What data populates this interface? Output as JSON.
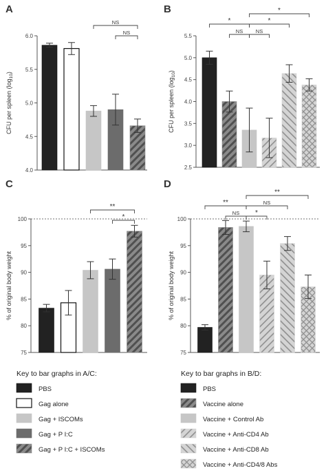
{
  "patterns": {
    "black": {
      "fill": "#222222",
      "stroke": "#111111",
      "hatch": null
    },
    "white": {
      "fill": "#ffffff",
      "stroke": "#111111",
      "hatch": null
    },
    "lightgray": {
      "fill": "#c6c6c6",
      "stroke": "#c6c6c6",
      "hatch": null
    },
    "darkgray": {
      "fill": "#6c6c6c",
      "stroke": "#6c6c6c",
      "hatch": null
    },
    "darkhatch": {
      "fill": "#8a8a8a",
      "stroke": "#8a8a8a",
      "hatch": "diag-dark"
    },
    "lighthatch": {
      "fill": "#d4d4d4",
      "stroke": "#d4d4d4",
      "hatch": "diag-light"
    },
    "backhatch": {
      "fill": "#d4d4d4",
      "stroke": "#d4d4d4",
      "hatch": "back-light"
    },
    "crosshatch": {
      "fill": "#d4d4d4",
      "stroke": "#d4d4d4",
      "hatch": "cross-light"
    }
  },
  "chart_data": [
    {
      "panel": "A",
      "type": "bar",
      "ylabel": "CFU per spleen (log10)",
      "ylabel_main": "CFU per spleen (log",
      "ylabel_sub": "10",
      "ylabel_close": ")",
      "ylim": [
        4.0,
        6.0
      ],
      "yticks": [
        "4.0",
        "4.5",
        "5.0",
        "5.5",
        "6.0"
      ],
      "ytick_values": [
        4.0,
        4.5,
        5.0,
        5.5,
        6.0
      ],
      "dashed_line": null,
      "bars": [
        {
          "group": "PBS",
          "pattern": "black",
          "value": 5.86,
          "err": 0.03
        },
        {
          "group": "Gag alone",
          "pattern": "white",
          "value": 5.81,
          "err": 0.09
        },
        {
          "group": "Gag + ISCOMs",
          "pattern": "lightgray",
          "value": 4.88,
          "err": 0.08
        },
        {
          "group": "Gag + P I:C",
          "pattern": "darkgray",
          "value": 4.9,
          "err": 0.23
        },
        {
          "group": "Gag + P I:C + ISCOMs",
          "pattern": "darkhatch",
          "value": 4.66,
          "err": 0.1
        }
      ],
      "brackets": [
        {
          "from": 2,
          "to": 4,
          "label": "NS",
          "tier": 1
        },
        {
          "from": 3,
          "to": 4,
          "label": "NS",
          "tier": 0
        }
      ]
    },
    {
      "panel": "B",
      "type": "bar",
      "ylabel": "CFU per spleen (log10)",
      "ylabel_main": "CFU per spleen (log",
      "ylabel_sub": "10",
      "ylabel_close": ")",
      "ylim": [
        2.5,
        5.5
      ],
      "yticks": [
        "2.5",
        "3.0",
        "3.5",
        "4.0",
        "4.5",
        "5.0",
        "5.5"
      ],
      "ytick_values": [
        2.5,
        3.0,
        3.5,
        4.0,
        4.5,
        5.0,
        5.5
      ],
      "dashed_line": null,
      "bars": [
        {
          "group": "PBS",
          "pattern": "black",
          "value": 5.0,
          "err": 0.15
        },
        {
          "group": "Vaccine alone",
          "pattern": "darkhatch",
          "value": 4.0,
          "err": 0.24
        },
        {
          "group": "Vaccine + Control Ab",
          "pattern": "lightgray",
          "value": 3.35,
          "err": 0.5
        },
        {
          "group": "Vaccine + Anti-CD4 Ab",
          "pattern": "lighthatch",
          "value": 3.17,
          "err": 0.45
        },
        {
          "group": "Vaccine + Anti-CD8 Ab",
          "pattern": "backhatch",
          "value": 4.64,
          "err": 0.2
        },
        {
          "group": "Vaccine + Anti-CD4/8 Abs",
          "pattern": "crosshatch",
          "value": 4.38,
          "err": 0.14
        }
      ],
      "brackets": [
        {
          "from": 0,
          "to": 2,
          "label": "*",
          "tier": 1
        },
        {
          "from": 2,
          "to": 5,
          "label": "*",
          "tier": 2
        },
        {
          "from": 1,
          "to": 2,
          "label": "NS",
          "tier": 0
        },
        {
          "from": 2,
          "to": 3,
          "label": "NS",
          "tier": 0
        },
        {
          "from": 2,
          "to": 4,
          "label": "*",
          "tier": 1
        }
      ]
    },
    {
      "panel": "C",
      "type": "bar",
      "ylabel": "% of original body weight",
      "ylim": [
        75,
        100
      ],
      "yticks": [
        "75",
        "80",
        "85",
        "90",
        "95",
        "100"
      ],
      "ytick_values": [
        75,
        80,
        85,
        90,
        95,
        100
      ],
      "dashed_line": 100,
      "bars": [
        {
          "group": "PBS",
          "pattern": "black",
          "value": 83.3,
          "err": 0.7
        },
        {
          "group": "Gag alone",
          "pattern": "white",
          "value": 84.3,
          "err": 2.3
        },
        {
          "group": "Gag + ISCOMs",
          "pattern": "lightgray",
          "value": 90.4,
          "err": 1.6
        },
        {
          "group": "Gag + P I:C",
          "pattern": "darkgray",
          "value": 90.6,
          "err": 1.9
        },
        {
          "group": "Gag + P I:C + ISCOMs",
          "pattern": "darkhatch",
          "value": 97.7,
          "err": 1.1
        }
      ],
      "brackets": [
        {
          "from": 2,
          "to": 4,
          "label": "**",
          "tier": 1
        },
        {
          "from": 3,
          "to": 4,
          "label": "*",
          "tier": 0
        }
      ]
    },
    {
      "panel": "D",
      "type": "bar",
      "ylabel": "% of original body weight",
      "ylim": [
        75,
        100
      ],
      "yticks": [
        "75",
        "80",
        "85",
        "90",
        "95",
        "100"
      ],
      "ytick_values": [
        75,
        80,
        85,
        90,
        95,
        100
      ],
      "dashed_line": 100,
      "bars": [
        {
          "group": "PBS",
          "pattern": "black",
          "value": 79.7,
          "err": 0.5
        },
        {
          "group": "Vaccine alone",
          "pattern": "darkhatch",
          "value": 98.4,
          "err": 1.3
        },
        {
          "group": "Vaccine + Control Ab",
          "pattern": "lightgray",
          "value": 98.6,
          "err": 1.0
        },
        {
          "group": "Vaccine + Anti-CD4 Ab",
          "pattern": "lighthatch",
          "value": 89.5,
          "err": 2.6
        },
        {
          "group": "Vaccine + Anti-CD8 Ab",
          "pattern": "backhatch",
          "value": 95.4,
          "err": 1.3
        },
        {
          "group": "Vaccine + Anti-CD4/8 Abs",
          "pattern": "crosshatch",
          "value": 87.3,
          "err": 2.2
        }
      ],
      "brackets": [
        {
          "from": 0,
          "to": 2,
          "label": "**",
          "tier": 1
        },
        {
          "from": 2,
          "to": 5,
          "label": "**",
          "tier": 2
        },
        {
          "from": 1,
          "to": 2,
          "label": "NS",
          "tier": 0
        },
        {
          "from": 2,
          "to": 3,
          "label": "*",
          "tier": 0
        },
        {
          "from": 2,
          "to": 4,
          "label": "NS",
          "tier": 1
        }
      ]
    }
  ],
  "keys": [
    {
      "title": "Key to bar graphs in A/C:",
      "items": [
        {
          "label": "PBS",
          "pattern": "black"
        },
        {
          "label": "Gag alone",
          "pattern": "white"
        },
        {
          "label": "Gag + ISCOMs",
          "pattern": "lightgray"
        },
        {
          "label": "Gag + P I:C",
          "pattern": "darkgray"
        },
        {
          "label": "Gag + P I:C + ISCOMs",
          "pattern": "darkhatch"
        }
      ]
    },
    {
      "title": "Key to bar graphs in B/D:",
      "items": [
        {
          "label": "PBS",
          "pattern": "black"
        },
        {
          "label": "Vaccine alone",
          "pattern": "darkhatch"
        },
        {
          "label": "Vaccine + Control Ab",
          "pattern": "lightgray"
        },
        {
          "label": "Vaccine + Anti-CD4 Ab",
          "pattern": "lighthatch"
        },
        {
          "label": "Vaccine + Anti-CD8 Ab",
          "pattern": "backhatch"
        },
        {
          "label": "Vaccine + Anti-CD4/8 Abs",
          "pattern": "crosshatch"
        }
      ]
    }
  ]
}
